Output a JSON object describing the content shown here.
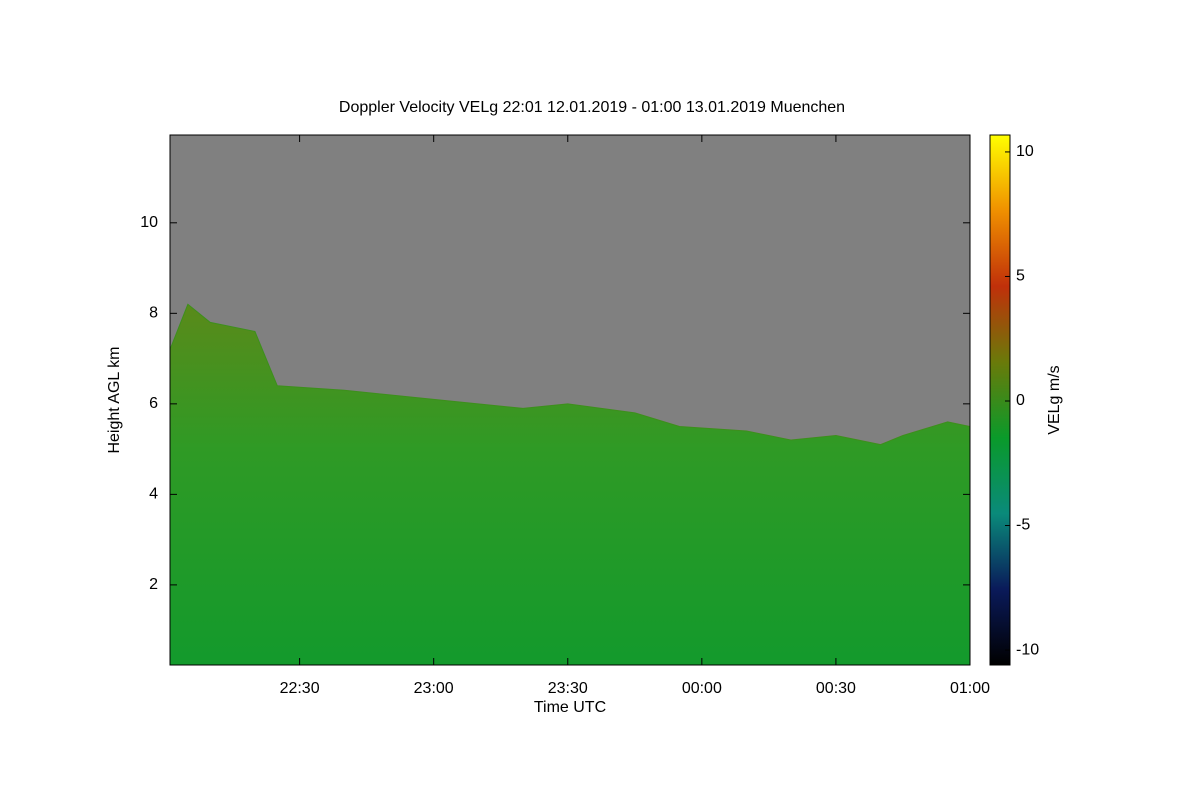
{
  "chart_data": {
    "type": "area",
    "title": "Doppler Velocity VELg   22:01 12.01.2019 - 01:00 13.01.2019 Muenchen",
    "x_label": "Time UTC",
    "y_label": "Height AGL km",
    "colorbar_label": "VELg m/s",
    "background_color": "#808080",
    "xlim": [
      22.0167,
      25
    ],
    "xticks": [
      {
        "value": 22.5,
        "label": "22:30"
      },
      {
        "value": 23,
        "label": "23:00"
      },
      {
        "value": 23.5,
        "label": "23:30"
      },
      {
        "value": 24,
        "label": "00:00"
      },
      {
        "value": 24.5,
        "label": "00:30"
      },
      {
        "value": 25,
        "label": "01:00"
      }
    ],
    "ylim": [
      0.23,
      11.94
    ],
    "yticks": [
      2,
      4,
      6,
      8,
      10
    ],
    "clim": [
      -10.6,
      10.68
    ],
    "cticks": [
      -10,
      -5,
      0,
      5,
      10
    ],
    "colormap": [
      "#000000",
      "#0a1a5a",
      "#0a8a7a",
      "#0a9a2a",
      "#6a7a0a",
      "#c0300a",
      "#f09000",
      "#ffff00"
    ],
    "series": [
      {
        "color": "#3d8f1c",
        "x": [
          22.0167,
          22.0833,
          22.1667,
          22.3333,
          22.4167,
          22.6667,
          23,
          23.3333,
          23.5,
          23.75,
          23.9167,
          24.1667,
          24.3333,
          24.5,
          24.6667,
          24.75,
          24.9167,
          25
        ],
        "y": [
          7.2,
          8.2,
          7.8,
          7.6,
          6.4,
          6.3,
          6.1,
          5.9,
          6.0,
          5.8,
          5.5,
          5.4,
          5.2,
          5.3,
          5.1,
          5.3,
          5.6,
          5.5
        ]
      }
    ]
  }
}
